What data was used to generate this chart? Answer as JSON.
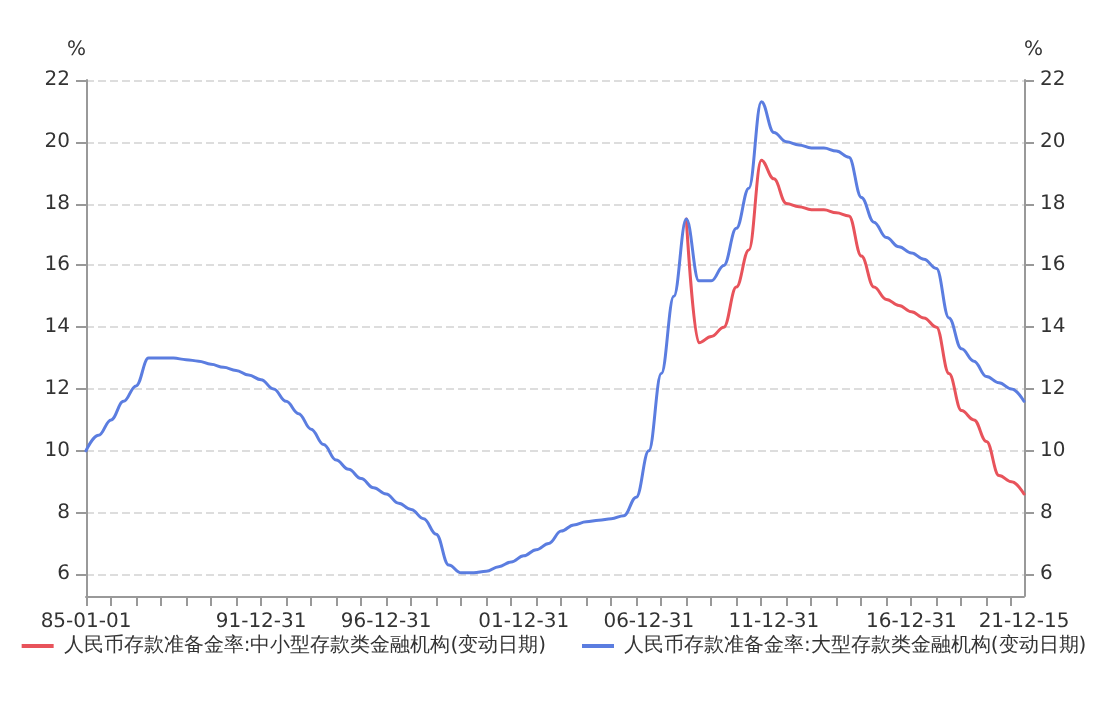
{
  "chart_data": {
    "type": "line",
    "ylabel": "%",
    "y2label": "%",
    "categories": [
      "85-01-01",
      null,
      null,
      null,
      null,
      null,
      null,
      null,
      null,
      null,
      null,
      null,
      null,
      null,
      "91-12-31",
      null,
      null,
      null,
      null,
      null,
      null,
      null,
      null,
      null,
      "96-12-31",
      null,
      null,
      null,
      null,
      null,
      null,
      null,
      null,
      null,
      null,
      "01-12-31",
      null,
      null,
      null,
      null,
      null,
      null,
      null,
      null,
      null,
      "06-12-31",
      null,
      null,
      null,
      null,
      null,
      null,
      null,
      null,
      null,
      "11-12-31",
      null,
      null,
      null,
      null,
      null,
      null,
      null,
      null,
      null,
      null,
      "16-12-31",
      null,
      null,
      null,
      null,
      null,
      null,
      null,
      null,
      "21-12-15"
    ],
    "series": [
      {
        "name": "人民币存款准备金率:中小型存款类金融机构(变动日期)",
        "color": "#e8535b",
        "values": [
          null,
          null,
          null,
          null,
          null,
          null,
          null,
          null,
          null,
          null,
          null,
          null,
          null,
          null,
          null,
          null,
          null,
          null,
          null,
          null,
          null,
          null,
          null,
          null,
          null,
          null,
          null,
          null,
          null,
          null,
          null,
          null,
          null,
          null,
          null,
          null,
          null,
          null,
          null,
          null,
          null,
          null,
          null,
          null,
          null,
          null,
          null,
          null,
          17.5,
          13.5,
          13.7,
          14.0,
          15.3,
          16.5,
          19.4,
          18.8,
          18.0,
          17.9,
          17.8,
          17.8,
          17.7,
          17.6,
          16.3,
          15.3,
          14.9,
          14.7,
          14.5,
          14.3,
          14.0,
          12.5,
          11.3,
          11.0,
          10.3,
          9.2,
          9.0,
          8.6
        ]
      },
      {
        "name": "人民币存款准备金率:大型存款类金融机构(变动日期)",
        "color": "#5b7de0",
        "values": [
          10.0,
          10.5,
          11.0,
          11.6,
          12.1,
          13.0,
          13.0,
          13.0,
          12.95,
          12.9,
          12.8,
          12.7,
          12.6,
          12.45,
          12.3,
          12.0,
          11.6,
          11.2,
          10.7,
          10.2,
          9.7,
          9.4,
          9.1,
          8.8,
          8.6,
          8.3,
          8.1,
          7.8,
          7.3,
          6.3,
          6.05,
          6.05,
          6.1,
          6.25,
          6.4,
          6.6,
          6.8,
          7.0,
          7.4,
          7.6,
          7.7,
          7.75,
          7.8,
          7.9,
          8.5,
          10.0,
          12.5,
          15.0,
          17.5,
          15.5,
          15.5,
          16.0,
          17.2,
          18.5,
          21.3,
          20.3,
          20.0,
          19.9,
          19.8,
          19.8,
          19.7,
          19.5,
          18.2,
          17.4,
          16.9,
          16.6,
          16.4,
          16.2,
          15.9,
          14.3,
          13.3,
          12.9,
          12.4,
          12.2,
          12.0,
          11.6
        ]
      }
    ],
    "ylim": [
      5.3,
      22
    ],
    "yticks": [
      6,
      8,
      10,
      12,
      14,
      16,
      18,
      20,
      22
    ],
    "y2lim": [
      5.3,
      22
    ],
    "y2ticks": [
      6,
      8,
      10,
      12,
      14,
      16,
      18,
      20,
      22
    ],
    "grid": "y",
    "legend": "bottom",
    "marker": "none",
    "line_style": "solid"
  }
}
